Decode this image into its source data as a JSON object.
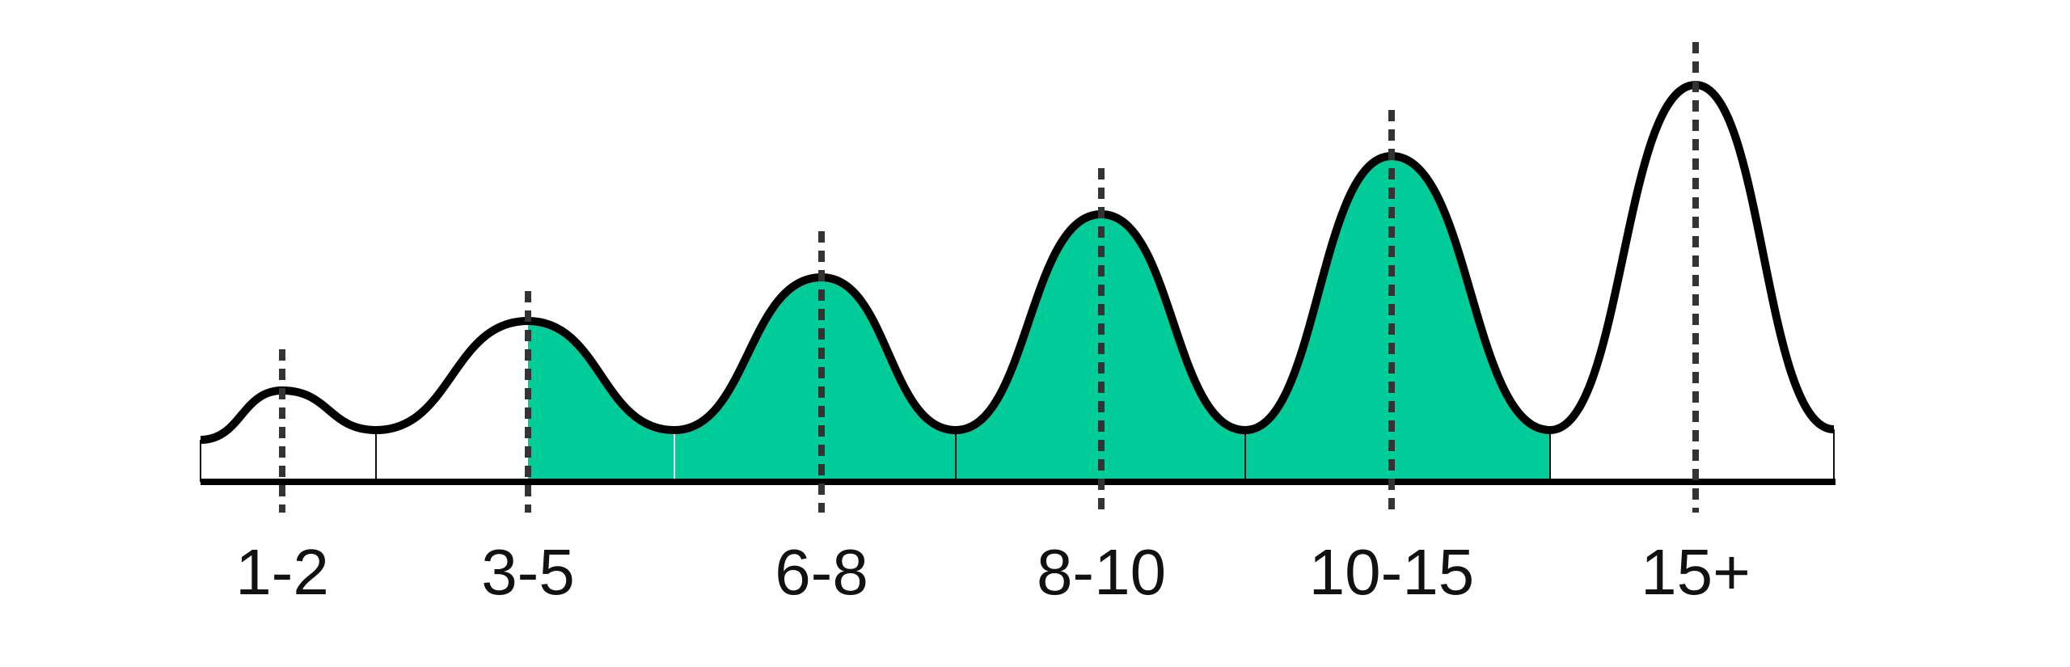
{
  "labels": [
    "1-2",
    "3-5",
    "6-8",
    "8-10",
    "10-15",
    "15+"
  ]
}
